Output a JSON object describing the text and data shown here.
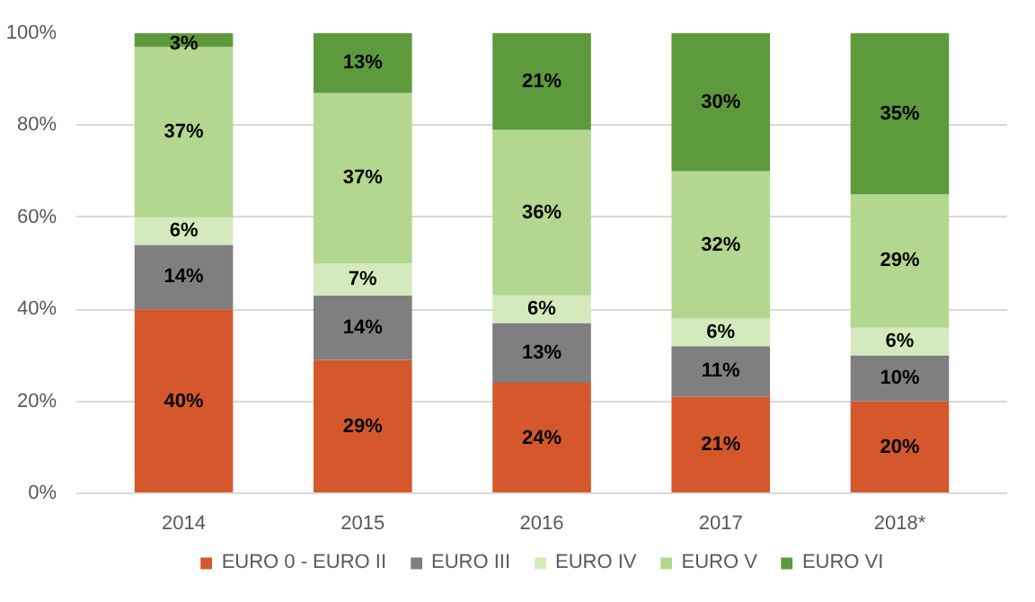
{
  "chart_data": {
    "type": "bar",
    "stacked": true,
    "categories": [
      "2014",
      "2015",
      "2016",
      "2017",
      "2018*"
    ],
    "series": [
      {
        "name": "EURO 0 - EURO II",
        "color": "#d4582c",
        "values": [
          40,
          29,
          24,
          21,
          20
        ],
        "value_labels": [
          "40%",
          "29%",
          "24%",
          "21%",
          "20%"
        ]
      },
      {
        "name": "EURO III",
        "color": "#7f7f7f",
        "values": [
          14,
          14,
          13,
          11,
          10
        ],
        "value_labels": [
          "14%",
          "14%",
          "13%",
          "11%",
          "10%"
        ]
      },
      {
        "name": "EURO IV",
        "color": "#d5eabc",
        "values": [
          6,
          7,
          6,
          6,
          6
        ],
        "value_labels": [
          "6%",
          "7%",
          "6%",
          "6%",
          "6%"
        ]
      },
      {
        "name": "EURO V",
        "color": "#b3d78f",
        "values": [
          37,
          37,
          36,
          32,
          29
        ],
        "value_labels": [
          "37%",
          "37%",
          "36%",
          "32%",
          "29%"
        ]
      },
      {
        "name": "EURO VI",
        "color": "#5d9a3c",
        "values": [
          3,
          13,
          21,
          30,
          35
        ],
        "value_labels": [
          "3%",
          "13%",
          "21%",
          "30%",
          "35%"
        ]
      }
    ],
    "ylim": [
      0,
      100
    ],
    "yticks": [
      {
        "value": 0,
        "label": "0%"
      },
      {
        "value": 20,
        "label": "20%"
      },
      {
        "value": 40,
        "label": "40%"
      },
      {
        "value": 60,
        "label": "60%"
      },
      {
        "value": 80,
        "label": "80%"
      },
      {
        "value": 100,
        "label": "100%"
      }
    ],
    "grid": "y",
    "legend": "bottom"
  }
}
